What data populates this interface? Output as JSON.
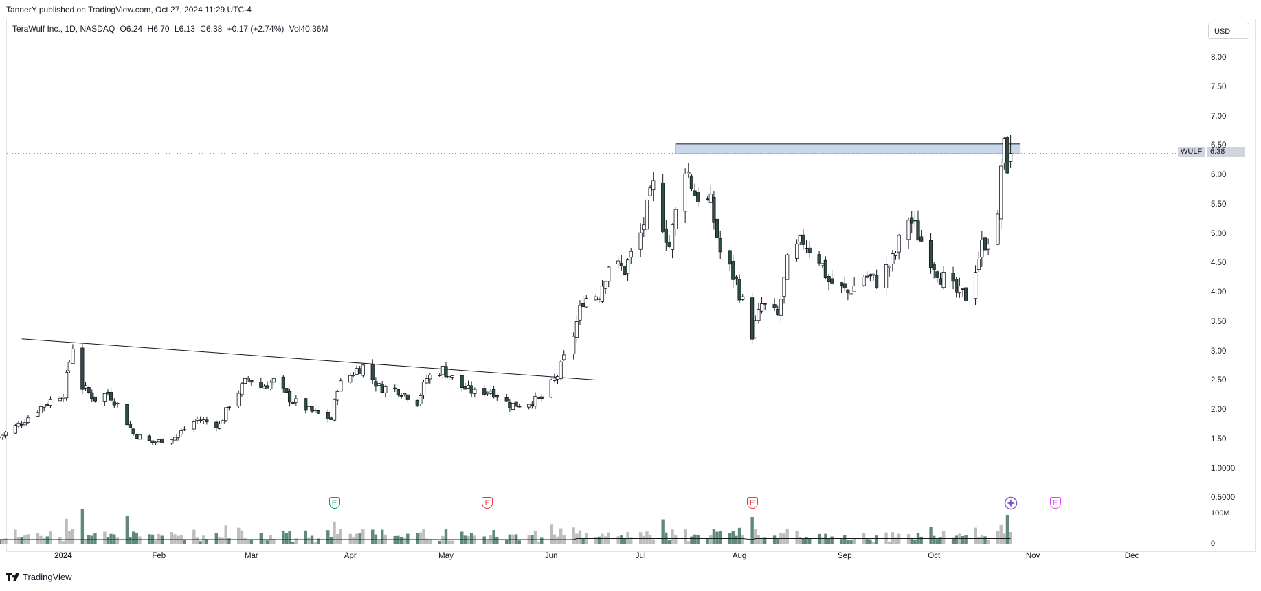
{
  "header": {
    "publish_line": "TannerY published on TradingView.com, Oct 27, 2024 11:29 UTC-4"
  },
  "legend": {
    "title": "TeraWulf Inc., 1D, NASDAQ",
    "open": "O6.24",
    "high": "H6.70",
    "low": "L6.13",
    "close": "C6.38",
    "change": "+0.17 (+2.74%)",
    "volume": "Vol40.36M"
  },
  "currency": "USD",
  "symbol_tag": "WULF",
  "last_price": "6.38",
  "volume_scale": [
    "100M",
    "0"
  ],
  "events": [
    "E",
    "E",
    "E",
    "E"
  ],
  "footer": {
    "brand": "TradingView"
  },
  "colors": {
    "up": "#ffffff",
    "down": "#2f4f44",
    "wick": "#131722",
    "zone_fill": "#c9d8e8",
    "vol_up": "#bdbdbd",
    "vol_down": "#5f8a7a",
    "event_green": "#089981",
    "event_red": "#f23645",
    "event_magenta": "#e040fb",
    "event_purple": "#7e57c2"
  },
  "chart_data": {
    "type": "candlestick",
    "symbol": "WULF",
    "interval": "1D",
    "y_ticks": [
      "8.00",
      "7.50",
      "7.00",
      "6.50",
      "6.00",
      "5.50",
      "5.00",
      "4.50",
      "4.00",
      "3.50",
      "3.00",
      "2.50",
      "2.00",
      "1.50",
      "1.0000",
      "0.5000"
    ],
    "x_ticks": [
      {
        "label": "2024",
        "date": "2024-01-02",
        "bold": true
      },
      {
        "label": "Feb",
        "date": "2024-02-01"
      },
      {
        "label": "Mar",
        "date": "2024-03-01"
      },
      {
        "label": "Apr",
        "date": "2024-04-01"
      },
      {
        "label": "May",
        "date": "2024-05-01"
      },
      {
        "label": "Jun",
        "date": "2024-06-03"
      },
      {
        "label": "Jul",
        "date": "2024-07-01"
      },
      {
        "label": "Aug",
        "date": "2024-08-01"
      },
      {
        "label": "Sep",
        "date": "2024-09-03"
      },
      {
        "label": "Oct",
        "date": "2024-10-01"
      },
      {
        "label": "Nov",
        "date": "2024-11-01"
      },
      {
        "label": "Dec",
        "date": "2024-12-02"
      }
    ],
    "price_path": [
      [
        "2023-12-13",
        1.55
      ],
      [
        "2023-12-20",
        1.8
      ],
      [
        "2023-12-27",
        2.1
      ],
      [
        "2024-01-02",
        2.3
      ],
      [
        "2024-01-05",
        3.1
      ],
      [
        "2024-01-08",
        2.4
      ],
      [
        "2024-01-12",
        2.2
      ],
      [
        "2024-01-16",
        2.3
      ],
      [
        "2024-01-19",
        2.1
      ],
      [
        "2024-01-24",
        1.6
      ],
      [
        "2024-01-30",
        1.45
      ],
      [
        "2024-02-06",
        1.55
      ],
      [
        "2024-02-13",
        1.85
      ],
      [
        "2024-02-20",
        1.75
      ],
      [
        "2024-02-23",
        2.1
      ],
      [
        "2024-02-29",
        2.55
      ],
      [
        "2024-03-04",
        2.4
      ],
      [
        "2024-03-08",
        2.5
      ],
      [
        "2024-03-13",
        2.2
      ],
      [
        "2024-03-19",
        2.0
      ],
      [
        "2024-03-26",
        1.85
      ],
      [
        "2024-03-28",
        2.4
      ],
      [
        "2024-04-03",
        2.7
      ],
      [
        "2024-04-05",
        2.75
      ],
      [
        "2024-04-10",
        2.4
      ],
      [
        "2024-04-16",
        2.35
      ],
      [
        "2024-04-22",
        2.15
      ],
      [
        "2024-04-25",
        2.55
      ],
      [
        "2024-04-30",
        2.7
      ],
      [
        "2024-05-06",
        2.4
      ],
      [
        "2024-05-10",
        2.3
      ],
      [
        "2024-05-15",
        2.35
      ],
      [
        "2024-05-21",
        2.1
      ],
      [
        "2024-05-24",
        2.1
      ],
      [
        "2024-05-31",
        2.2
      ],
      [
        "2024-06-05",
        2.6
      ],
      [
        "2024-06-10",
        3.3
      ],
      [
        "2024-06-13",
        3.9
      ],
      [
        "2024-06-18",
        4.0
      ],
      [
        "2024-06-21",
        4.5
      ],
      [
        "2024-06-26",
        4.4
      ],
      [
        "2024-07-01",
        5.0
      ],
      [
        "2024-07-05",
        5.8
      ],
      [
        "2024-07-10",
        4.8
      ],
      [
        "2024-07-15",
        6.2
      ],
      [
        "2024-07-18",
        5.7
      ],
      [
        "2024-07-23",
        5.5
      ],
      [
        "2024-07-26",
        4.7
      ],
      [
        "2024-07-31",
        4.2
      ],
      [
        "2024-08-05",
        3.3
      ],
      [
        "2024-08-08",
        3.8
      ],
      [
        "2024-08-13",
        3.6
      ],
      [
        "2024-08-16",
        4.5
      ],
      [
        "2024-08-21",
        4.9
      ],
      [
        "2024-08-26",
        4.6
      ],
      [
        "2024-08-29",
        4.2
      ],
      [
        "2024-09-04",
        4.0
      ],
      [
        "2024-09-09",
        4.3
      ],
      [
        "2024-09-13",
        4.2
      ],
      [
        "2024-09-18",
        4.55
      ],
      [
        "2024-09-23",
        5.3
      ],
      [
        "2024-09-26",
        5.0
      ],
      [
        "2024-09-30",
        4.6
      ],
      [
        "2024-10-03",
        4.3
      ],
      [
        "2024-10-08",
        4.0
      ],
      [
        "2024-10-11",
        3.95
      ],
      [
        "2024-10-16",
        4.8
      ],
      [
        "2024-10-21",
        5.2
      ],
      [
        "2024-10-22",
        6.2
      ],
      [
        "2024-10-23",
        6.45
      ],
      [
        "2024-10-24",
        6.2
      ],
      [
        "2024-10-25",
        6.38
      ]
    ],
    "last_candle": {
      "date": "2024-10-25",
      "open": 6.24,
      "high": 6.7,
      "low": 6.13,
      "close": 6.38
    },
    "resistance_zone": {
      "from": "2024-07-12",
      "to": "2024-10-28",
      "low": 6.37,
      "high": 6.54
    },
    "trendline": [
      [
        "2023-12-20",
        3.22
      ],
      [
        "2024-06-17",
        2.52
      ]
    ],
    "event_dates": [
      {
        "date": "2024-03-27",
        "type": "earnings-past",
        "color": "green"
      },
      {
        "date": "2024-05-14",
        "type": "earnings-past",
        "color": "red"
      },
      {
        "date": "2024-08-05",
        "type": "earnings-past",
        "color": "red"
      },
      {
        "date": "2024-10-25",
        "type": "marker",
        "color": "purple"
      },
      {
        "date": "2024-11-08",
        "type": "earnings-future",
        "color": "magenta"
      }
    ]
  }
}
